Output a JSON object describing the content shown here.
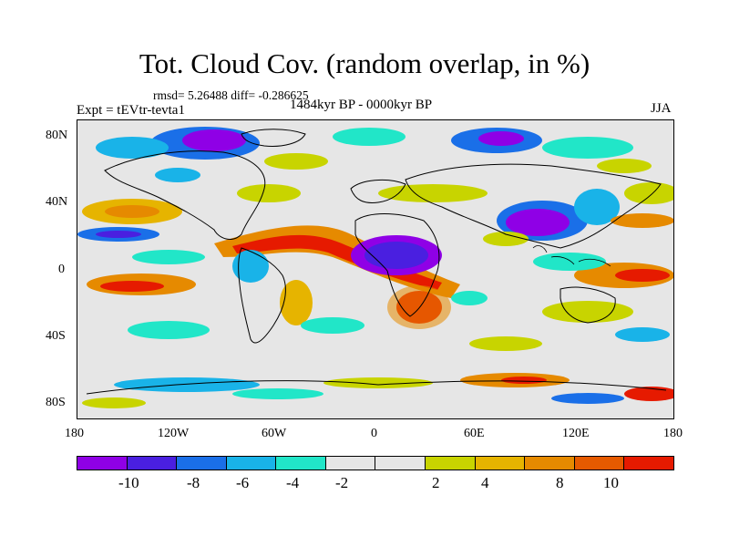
{
  "title": "Tot. Cloud Cov. (random overlap, in %)",
  "stats": "rmsd= 5.26488 diff= -0.286625",
  "period": "1484kyr BP - 0000kyr BP",
  "experiment": "Expt = tEVtr-tevta1",
  "season": "JJA",
  "map": {
    "lat_ticks": [
      "80N",
      "40N",
      "0",
      "40S",
      "80S"
    ],
    "lon_ticks": [
      "180",
      "120W",
      "60W",
      "0",
      "60E",
      "120E",
      "180"
    ]
  },
  "colorbar": {
    "colors": [
      "#8f00e6",
      "#4a1fe0",
      "#1a6fe8",
      "#19b3e8",
      "#21e6c8",
      "#e6e6e6",
      "#e6e6e6",
      "#c8d400",
      "#e6b400",
      "#e68a00",
      "#e65a00",
      "#e61a00"
    ],
    "labels": [
      "-10",
      "-8",
      "-6",
      "-4",
      "-2",
      "2",
      "4",
      "8",
      "10"
    ]
  },
  "colors": {
    "neutral": "#e6e6e6",
    "land_outline": "#000000"
  }
}
